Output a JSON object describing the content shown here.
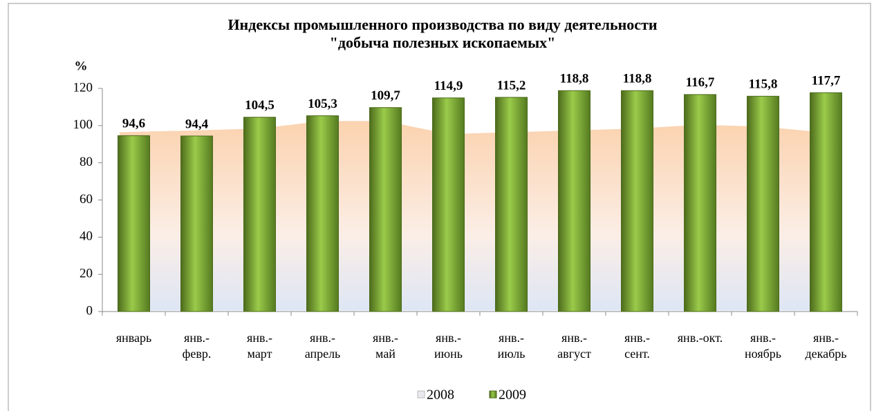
{
  "chart_data": {
    "type": "bar",
    "title": "Индексы промышленного производства по виду деятельности\n\"добыча полезных ископаемых\"",
    "y_label": "%",
    "categories": [
      "январь",
      "янв.-\nфевр.",
      "янв.-\nмарт",
      "янв.-\nапрель",
      "янв.-\nмай",
      "янв.-\nиюнь",
      "янв.-\nиюль",
      "янв.-\nавгуст",
      "янв.-\nсент.",
      "янв.-окт.",
      "янв.-\nноябрь",
      "янв.-\nдекабрь"
    ],
    "series": [
      {
        "name": "2008",
        "type": "area",
        "color": "#f9d3b0",
        "values": [
          97,
          98,
          99,
          103,
          103,
          96,
          97,
          98,
          99,
          101,
          100,
          96
        ]
      },
      {
        "name": "2009",
        "type": "bar",
        "color": "#77a22e",
        "values": [
          94.6,
          94.4,
          104.5,
          105.3,
          109.7,
          114.9,
          115.2,
          118.8,
          118.8,
          116.7,
          115.8,
          117.7
        ],
        "value_labels": [
          "94,6",
          "94,4",
          "104,5",
          "105,3",
          "109,7",
          "114,9",
          "115,2",
          "118,8",
          "118,8",
          "116,7",
          "115,8",
          "117,7"
        ]
      }
    ],
    "ylim": [
      0,
      120
    ],
    "yticks": [
      0,
      20,
      40,
      60,
      80,
      100,
      120
    ],
    "legend": "bottom"
  }
}
